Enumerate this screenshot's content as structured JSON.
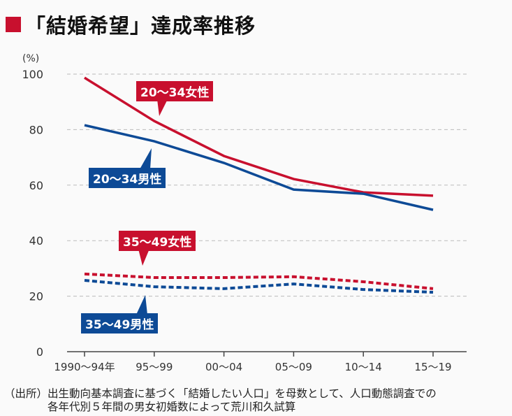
{
  "title": "「結婚希望」達成率推移",
  "source_line1": "（出所）出生動向基本調査に基づく「結婚したい人口」を母数として、人口動態調査での",
  "source_line2": "　　　　各年代別５年間の男女初婚数によって荒川和久試算",
  "colors": {
    "female": "#c8102e",
    "male": "#0d4a96",
    "accent": "#c8102e"
  },
  "chart_data": {
    "type": "line",
    "title": "「結婚希望」達成率推移",
    "ylabel": "(%)",
    "ylim": [
      0,
      100
    ],
    "yticks": [
      0,
      20,
      40,
      60,
      80,
      100
    ],
    "grid": true,
    "categories": [
      "1990〜94年",
      "95〜99",
      "00〜04",
      "05〜09",
      "10〜14",
      "15〜19"
    ],
    "series": [
      {
        "name": "20〜34女性",
        "style": "solid",
        "color": "#c8102e",
        "values": [
          98.7,
          83.1,
          70.5,
          62.2,
          57.4,
          56.2
        ]
      },
      {
        "name": "20〜34男性",
        "style": "solid",
        "color": "#0d4a96",
        "values": [
          81.6,
          75.8,
          68.0,
          58.4,
          56.9,
          51.1
        ]
      },
      {
        "name": "35〜49女性",
        "style": "dashed",
        "color": "#c8102e",
        "values": [
          28.0,
          26.7,
          26.7,
          27.0,
          25.2,
          22.7
        ]
      },
      {
        "name": "35〜49男性",
        "style": "dashed",
        "color": "#0d4a96",
        "values": [
          25.7,
          23.4,
          22.7,
          24.4,
          22.4,
          21.4
        ]
      }
    ]
  }
}
